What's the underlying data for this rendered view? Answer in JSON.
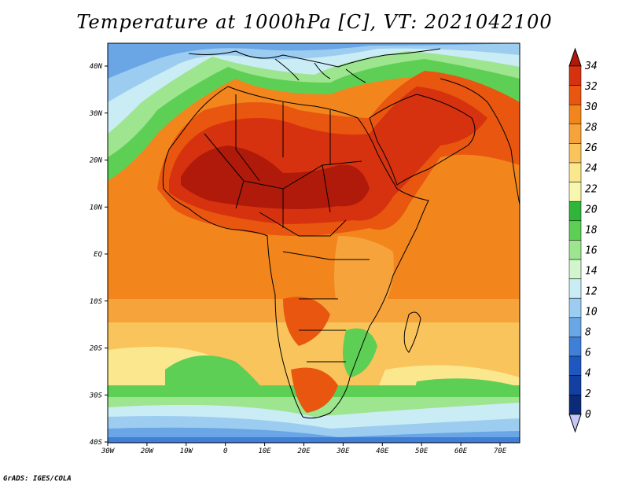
{
  "title": "Temperature at 1000hPa [C], VT: 2021042100",
  "credit": "GrADS: IGES/COLA",
  "map": {
    "lat_ticks": [
      "40N",
      "30N",
      "20N",
      "10N",
      "EQ",
      "10S",
      "20S",
      "30S",
      "40S"
    ],
    "lon_ticks": [
      "30W",
      "20W",
      "10W",
      "0",
      "10E",
      "20E",
      "30E",
      "40E",
      "50E",
      "60E",
      "70E"
    ],
    "lon_range": [
      -30,
      75
    ],
    "lat_range": [
      -40,
      45
    ]
  },
  "colorbar": {
    "labels": [
      "34",
      "32",
      "30",
      "28",
      "26",
      "24",
      "22",
      "20",
      "18",
      "16",
      "14",
      "12",
      "10",
      "8",
      "6",
      "4",
      "2",
      "0"
    ],
    "colors": [
      "#b01a0a",
      "#d6320f",
      "#e8560f",
      "#f2851c",
      "#f5a33a",
      "#f9c45c",
      "#fbe88e",
      "#f7f7b0",
      "#2fb53a",
      "#5ecf55",
      "#9ee58f",
      "#d2f5ce",
      "#c9ecf5",
      "#9ccdf0",
      "#6aa6e6",
      "#3f7fd8",
      "#1f57c0",
      "#123fa0",
      "#0b2a78",
      "#c6c6f8"
    ]
  }
}
